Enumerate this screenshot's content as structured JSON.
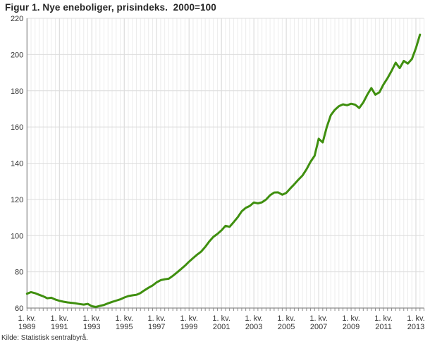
{
  "title": "Figur 1. Nye eneboliger, prisindeks.  2000=100",
  "source": "Kilde: Statistisk sentralbyrå.",
  "chart_data": {
    "type": "line",
    "title": "Figur 1. Nye eneboliger, prisindeks. 2000=100",
    "xlabel": "",
    "ylabel": "",
    "ylim": [
      60,
      220
    ],
    "y_ticks": [
      60,
      80,
      100,
      120,
      140,
      160,
      180,
      200,
      220
    ],
    "grid": true,
    "legend_position": "none",
    "frequency": "quarterly",
    "x_start": "1. kv. 1989",
    "x_end": "2. kv. 2013",
    "x_axis": {
      "tick_prefix": "1. kv.",
      "tick_years": [
        "1989",
        "1991",
        "1993",
        "1995",
        "1997",
        "1999",
        "2001",
        "2003",
        "2005",
        "2007",
        "2009",
        "2011",
        "2013"
      ],
      "ticks_every_n_quarters": 8
    },
    "series": [
      {
        "name": "Nye eneboliger, prisindeks (2000=100)",
        "color": "#3f8f0f",
        "values": [
          67.9,
          68.8,
          68.2,
          67.3,
          66.5,
          65.4,
          65.7,
          64.7,
          64.0,
          63.5,
          63.1,
          62.9,
          62.6,
          62.2,
          61.9,
          62.3,
          61.0,
          60.6,
          61.2,
          61.7,
          62.6,
          63.4,
          64.1,
          64.8,
          65.8,
          66.6,
          67.0,
          67.3,
          68.3,
          69.8,
          71.2,
          72.5,
          74.2,
          75.4,
          75.9,
          76.2,
          77.8,
          79.6,
          81.5,
          83.4,
          85.6,
          87.6,
          89.5,
          91.2,
          93.8,
          96.8,
          99.3,
          100.9,
          102.9,
          105.4,
          104.9,
          107.4,
          110.1,
          113.4,
          115.3,
          116.4,
          118.3,
          117.8,
          118.4,
          119.9,
          122.3,
          123.8,
          123.9,
          122.6,
          123.6,
          126.1,
          128.4,
          130.9,
          133.2,
          136.6,
          140.8,
          144.1,
          153.5,
          151.5,
          160.0,
          166.5,
          169.5,
          171.5,
          172.5,
          172.0,
          172.8,
          172.3,
          170.5,
          173.5,
          177.8,
          181.5,
          177.8,
          179.2,
          183.5,
          187.0,
          191.0,
          195.5,
          192.5,
          196.5,
          195.0,
          197.5,
          203.5,
          211.0
        ]
      }
    ],
    "colors": {
      "line": "#3f8f0f",
      "grid_minor": "#ececec",
      "grid_major": "#d6d6d6",
      "grid_horizontal": "#dcdcdc",
      "axis": "#8c8c8c",
      "text": "#333333"
    }
  }
}
